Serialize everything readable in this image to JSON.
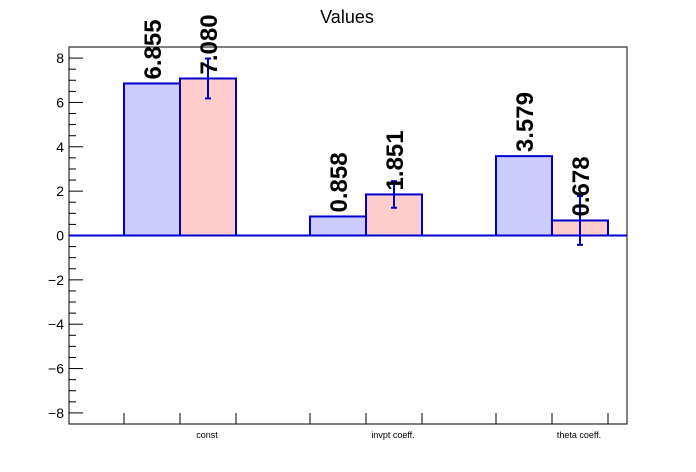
{
  "chart_data": {
    "type": "bar",
    "title": "Values",
    "xlabel": "",
    "ylabel": "",
    "categories": [
      "const",
      "invpt coeff.",
      "theta coeff."
    ],
    "ylim": [
      -8.5,
      8.5
    ],
    "yticks": [
      -8,
      -6,
      -4,
      -2,
      0,
      2,
      4,
      6,
      8
    ],
    "yticks_text": [
      "−8",
      "−6",
      "−4",
      "−2",
      "0",
      "2",
      "4",
      "6",
      "8"
    ],
    "series": [
      {
        "values": [
          6.855,
          0.858,
          3.579
        ],
        "labels": [
          "6.855",
          "0.858",
          "3.579"
        ],
        "fill": "#ccccff",
        "stroke": "#0000cc",
        "errors": [
          null,
          null,
          null
        ]
      },
      {
        "values": [
          7.08,
          1.851,
          0.678
        ],
        "labels": [
          "7.080",
          "1.851",
          "0.678"
        ],
        "fill": "#ffcccc",
        "stroke": "#0000cc",
        "errors": [
          0.9,
          0.6,
          1.1
        ]
      }
    ],
    "grid": false,
    "zero_line_color": "#0000cc",
    "axis_color": "#000000"
  }
}
